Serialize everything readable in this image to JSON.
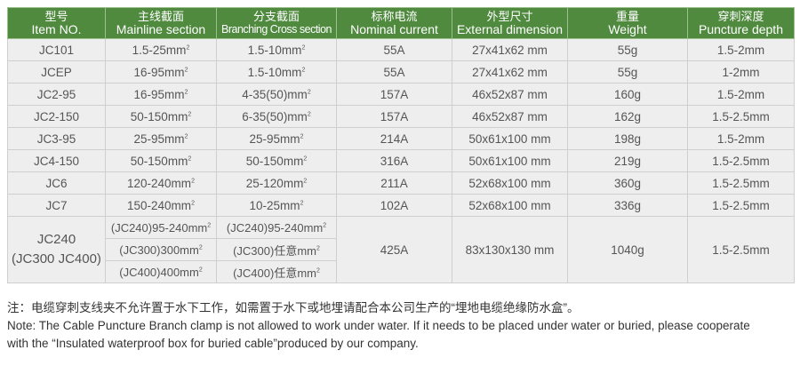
{
  "header": [
    {
      "zh": "型号",
      "en": "Item NO."
    },
    {
      "zh": "主线截面",
      "en": "Mainline section"
    },
    {
      "zh": "分支截面",
      "en": "Branching Cross section"
    },
    {
      "zh": "标称电流",
      "en": "Nominal current"
    },
    {
      "zh": "外型尺寸",
      "en": "External dimension"
    },
    {
      "zh": "重量",
      "en": "Weight"
    },
    {
      "zh": "穿刺深度",
      "en": "Puncture depth"
    }
  ],
  "rows": [
    [
      "JC101",
      "1.5-25mm",
      "1.5-10mm",
      "55A",
      "27x41x62 mm",
      "55g",
      "1.5-2mm"
    ],
    [
      "JCEP",
      "16-95mm",
      "1.5-10mm",
      "55A",
      "27x41x62 mm",
      "55g",
      "1-2mm"
    ],
    [
      "JC2-95",
      "16-95mm",
      "4-35(50)mm",
      "157A",
      "46x52x87 mm",
      "160g",
      "1.5-2mm"
    ],
    [
      "JC2-150",
      "50-150mm",
      "6-35(50)mm",
      "157A",
      "46x52x87 mm",
      "162g",
      "1.5-2.5mm"
    ],
    [
      "JC3-95",
      "25-95mm",
      "25-95mm",
      "214A",
      "50x61x100 mm",
      "198g",
      "1.5-2mm"
    ],
    [
      "JC4-150",
      "50-150mm",
      "50-150mm",
      "316A",
      "50x61x100 mm",
      "219g",
      "1.5-2.5mm"
    ],
    [
      "JC6",
      "120-240mm",
      "25-120mm",
      "211A",
      "52x68x100 mm",
      "360g",
      "1.5-2.5mm"
    ],
    [
      "JC7",
      "150-240mm",
      "10-25mm",
      "102A",
      "52x68x100 mm",
      "336g",
      "1.5-2.5mm"
    ]
  ],
  "last": {
    "item1": "JC240",
    "item2": "(JC300 JC400)",
    "main": [
      "(JC240)95-240mm",
      "(JC300)300mm",
      "(JC400)400mm"
    ],
    "branch": [
      "(JC240)95-240mm",
      "(JC300)任意mm",
      "(JC400)任意mm"
    ],
    "current": "425A",
    "dim": "83x130x130 mm",
    "weight": "1040g",
    "depth": "1.5-2.5mm"
  },
  "sup": "2",
  "notes": [
    "注：电缆穿刺支线夹不允许置于水下工作，如需置于水下或地埋请配合本公司生产的“埋地电缆绝缘防水盒”。",
    "Note: The Cable Puncture Branch clamp is not allowed to work under water. If it needs to be placed under water or buried, please cooperate",
    "with the “Insulated waterproof box for buried cable”produced by our company."
  ]
}
